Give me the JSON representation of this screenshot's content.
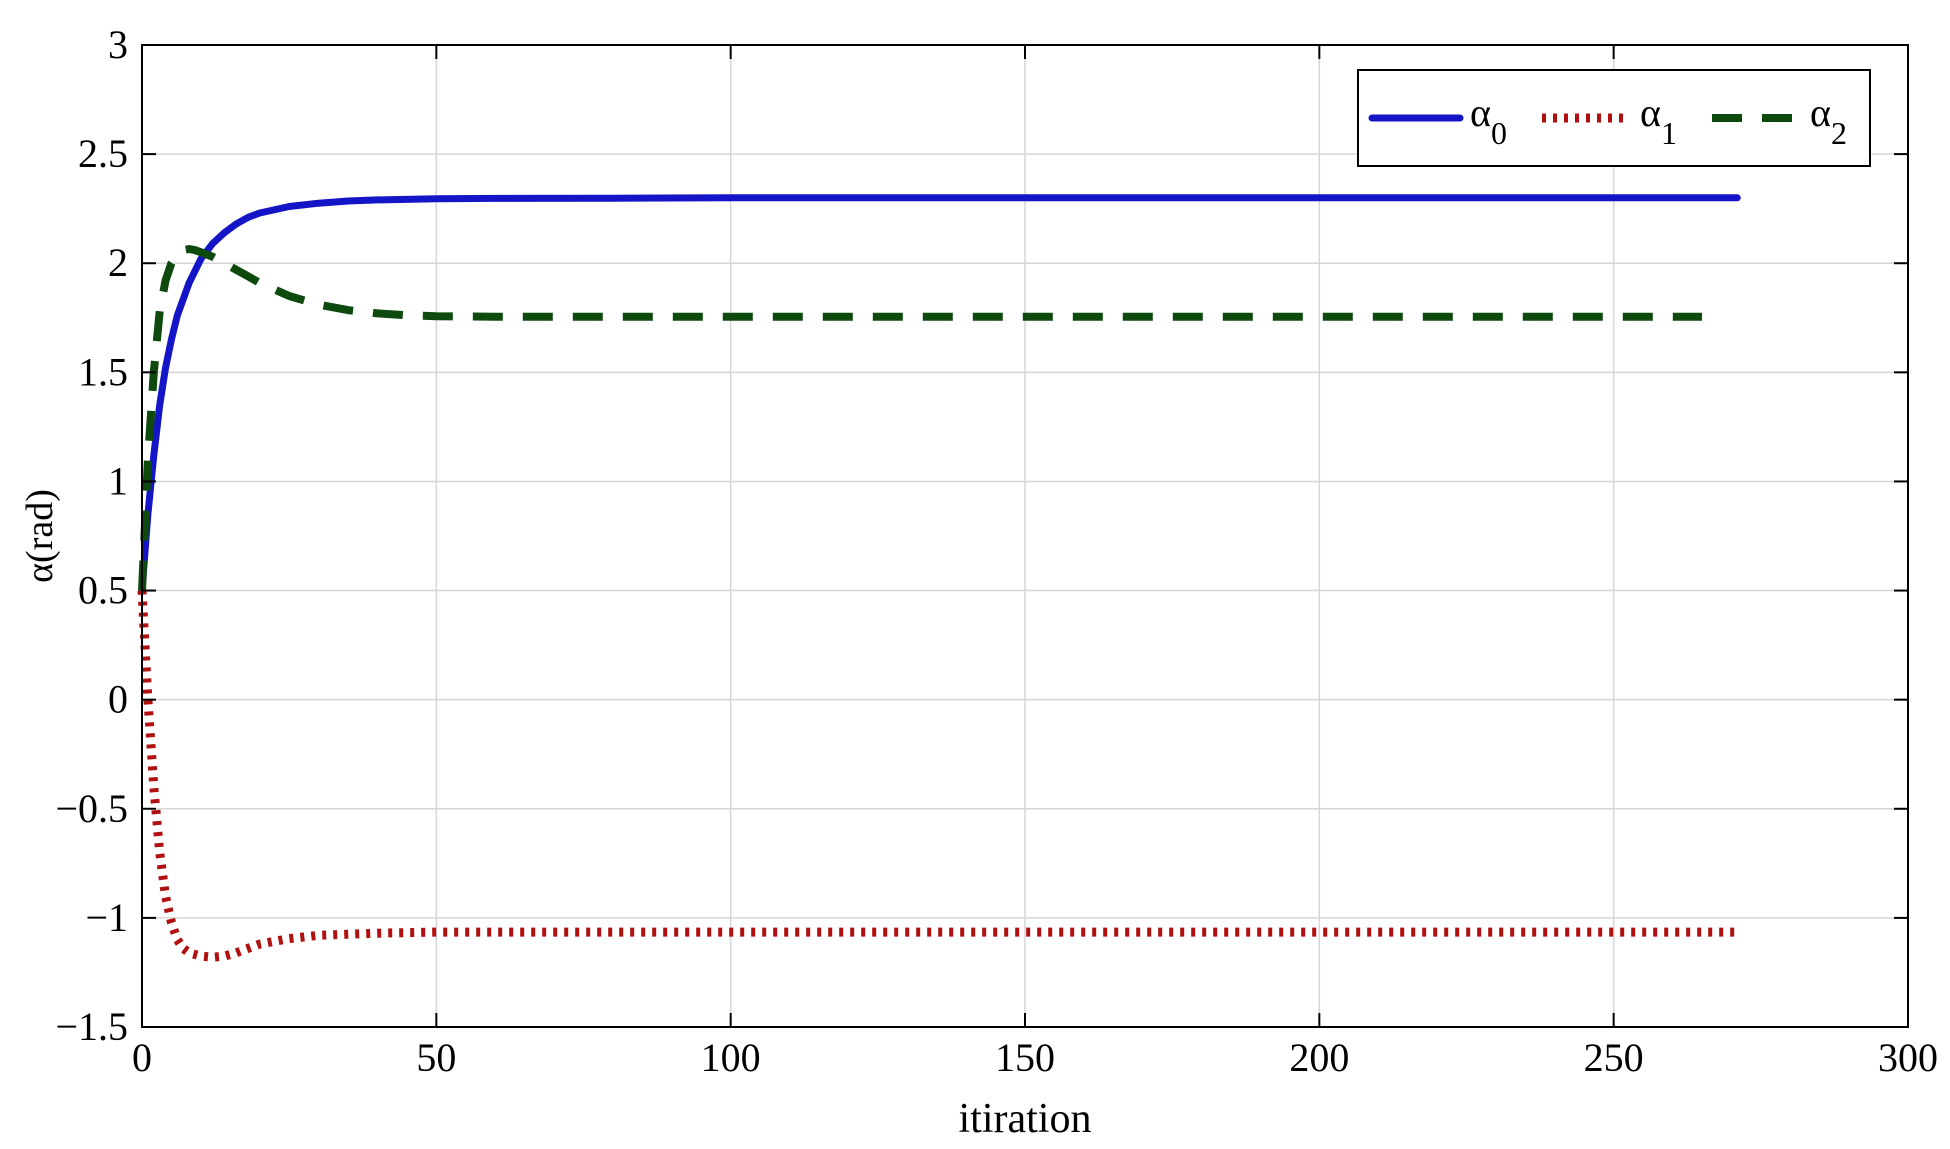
{
  "chart_data": {
    "type": "line",
    "title": "",
    "xlabel": "itiration",
    "ylabel": "α(rad)",
    "xlim": [
      0,
      300
    ],
    "ylim": [
      -1.5,
      3
    ],
    "xticks": [
      0,
      50,
      100,
      150,
      200,
      250,
      300
    ],
    "yticks": [
      -1.5,
      -1,
      -0.5,
      0,
      0.5,
      1,
      1.5,
      2,
      2.5,
      3
    ],
    "xtick_labels": [
      "0",
      "50",
      "100",
      "150",
      "200",
      "250",
      "300"
    ],
    "ytick_labels": [
      "−1.5",
      "−1",
      "−0.5",
      "0",
      "0.5",
      "1",
      "1.5",
      "2",
      "2.5",
      "3"
    ],
    "grid": true,
    "legend_position": "top-right",
    "series": [
      {
        "name": "α",
        "subscript": "0",
        "color": "#1515c8",
        "style": "solid",
        "x": [
          0,
          1,
          2,
          3,
          4,
          5,
          6,
          8,
          10,
          12,
          14,
          16,
          18,
          20,
          25,
          30,
          35,
          40,
          50,
          60,
          80,
          100,
          150,
          200,
          250,
          271
        ],
        "y": [
          0.5,
          0.85,
          1.12,
          1.35,
          1.52,
          1.65,
          1.76,
          1.91,
          2.02,
          2.09,
          2.14,
          2.18,
          2.21,
          2.23,
          2.26,
          2.275,
          2.285,
          2.29,
          2.295,
          2.297,
          2.298,
          2.3,
          2.3,
          2.3,
          2.3,
          2.3
        ]
      },
      {
        "name": "α",
        "subscript": "1",
        "color": "#b01010",
        "style": "dotted",
        "x": [
          0,
          1,
          2,
          3,
          4,
          5,
          6,
          7,
          8,
          10,
          12,
          14,
          16,
          18,
          20,
          25,
          30,
          35,
          40,
          50,
          60,
          80,
          100,
          150,
          200,
          250,
          271
        ],
        "y": [
          0.5,
          0.0,
          -0.4,
          -0.7,
          -0.9,
          -1.02,
          -1.1,
          -1.14,
          -1.16,
          -1.175,
          -1.18,
          -1.175,
          -1.16,
          -1.14,
          -1.12,
          -1.095,
          -1.08,
          -1.075,
          -1.07,
          -1.065,
          -1.065,
          -1.065,
          -1.065,
          -1.065,
          -1.065,
          -1.065,
          -1.065
        ]
      },
      {
        "name": "α",
        "subscript": "2",
        "color": "#0e4a0e",
        "style": "dashed",
        "x": [
          0,
          1,
          2,
          3,
          4,
          5,
          6,
          7,
          8,
          9,
          10,
          12,
          14,
          16,
          18,
          20,
          25,
          30,
          35,
          40,
          45,
          50,
          60,
          80,
          100,
          150,
          200,
          250,
          265
        ],
        "y": [
          0.5,
          1.1,
          1.5,
          1.78,
          1.92,
          2.0,
          2.04,
          2.06,
          2.065,
          2.06,
          2.05,
          2.03,
          2.0,
          1.97,
          1.94,
          1.91,
          1.85,
          1.81,
          1.785,
          1.77,
          1.762,
          1.757,
          1.755,
          1.755,
          1.755,
          1.755,
          1.755,
          1.755,
          1.755
        ]
      }
    ]
  }
}
